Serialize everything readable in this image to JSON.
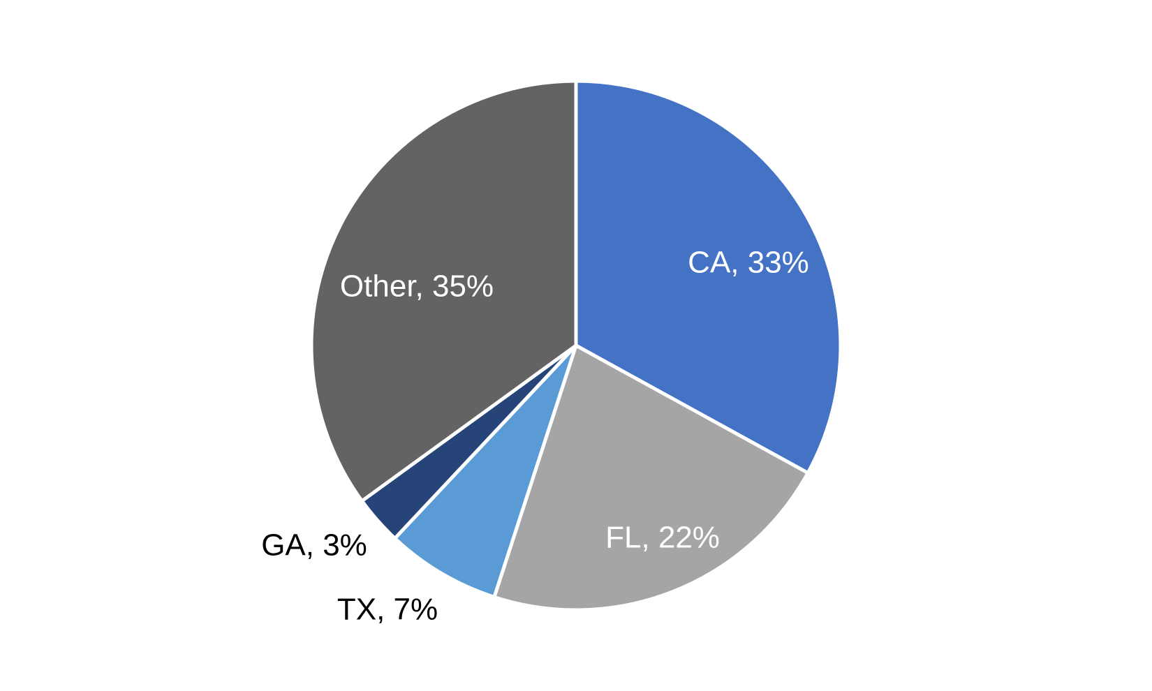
{
  "chart_data": {
    "type": "pie",
    "title": "",
    "start_angle": "12 o'clock",
    "direction": "clockwise",
    "slices": [
      {
        "label": "CA",
        "value": 33,
        "text": "CA, 33%",
        "color": "#4472C4",
        "label_color": "#FFFFFF",
        "label_inside": true
      },
      {
        "label": "FL",
        "value": 22,
        "text": "FL, 22%",
        "color": "#A5A5A5",
        "label_color": "#FFFFFF",
        "label_inside": true
      },
      {
        "label": "TX",
        "value": 7,
        "text": "TX, 7%",
        "color": "#5B9BD5",
        "label_color": "#000000",
        "label_inside": false
      },
      {
        "label": "GA",
        "value": 3,
        "text": "GA, 3%",
        "color": "#264478",
        "label_color": "#000000",
        "label_inside": false
      },
      {
        "label": "Other",
        "value": 35,
        "text": "Other, 35%",
        "color": "#636363",
        "label_color": "#FFFFFF",
        "label_inside": true
      }
    ],
    "legend": "none",
    "slice_border_color": "#FFFFFF"
  }
}
